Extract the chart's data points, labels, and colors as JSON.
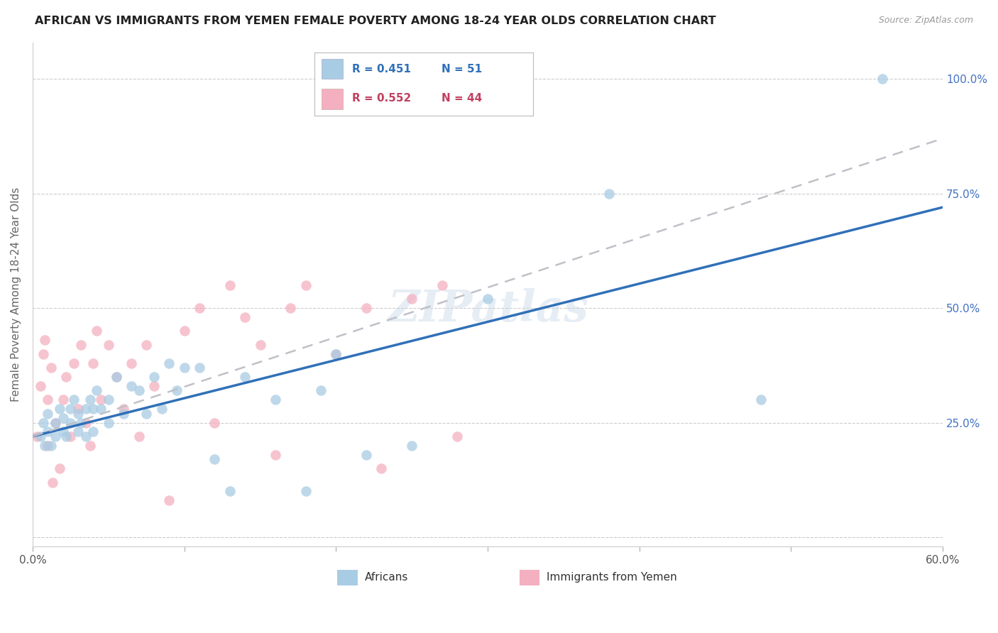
{
  "title": "AFRICAN VS IMMIGRANTS FROM YEMEN FEMALE POVERTY AMONG 18-24 YEAR OLDS CORRELATION CHART",
  "source": "Source: ZipAtlas.com",
  "ylabel": "Female Poverty Among 18-24 Year Olds",
  "xlim": [
    0.0,
    0.6
  ],
  "ylim": [
    -0.02,
    1.08
  ],
  "x_ticks": [
    0.0,
    0.1,
    0.2,
    0.3,
    0.4,
    0.5,
    0.6
  ],
  "x_tick_labels": [
    "0.0%",
    "",
    "",
    "",
    "",
    "",
    "60.0%"
  ],
  "y_ticks": [
    0.0,
    0.25,
    0.5,
    0.75,
    1.0
  ],
  "y_tick_labels": [
    "",
    "25.0%",
    "50.0%",
    "75.0%",
    "100.0%"
  ],
  "africans_R": 0.451,
  "africans_N": 51,
  "yemen_R": 0.552,
  "yemen_N": 44,
  "legend_label_1": "Africans",
  "legend_label_2": "Immigrants from Yemen",
  "color_blue": "#a8cce4",
  "color_pink": "#f4b0c0",
  "line_color_blue": "#3070b8",
  "line_color_pink": "#c0c0c8",
  "background_color": "#ffffff",
  "watermark": "ZIPatlas",
  "africans_x": [
    0.005,
    0.007,
    0.008,
    0.01,
    0.01,
    0.012,
    0.015,
    0.015,
    0.018,
    0.02,
    0.02,
    0.022,
    0.025,
    0.025,
    0.027,
    0.03,
    0.03,
    0.032,
    0.035,
    0.035,
    0.038,
    0.04,
    0.04,
    0.042,
    0.045,
    0.05,
    0.05,
    0.055,
    0.06,
    0.065,
    0.07,
    0.075,
    0.08,
    0.085,
    0.09,
    0.095,
    0.1,
    0.11,
    0.12,
    0.13,
    0.14,
    0.16,
    0.18,
    0.19,
    0.2,
    0.22,
    0.25,
    0.3,
    0.38,
    0.48,
    0.56
  ],
  "africans_y": [
    0.22,
    0.25,
    0.2,
    0.27,
    0.23,
    0.2,
    0.22,
    0.25,
    0.28,
    0.23,
    0.26,
    0.22,
    0.25,
    0.28,
    0.3,
    0.23,
    0.27,
    0.25,
    0.22,
    0.28,
    0.3,
    0.23,
    0.28,
    0.32,
    0.28,
    0.25,
    0.3,
    0.35,
    0.27,
    0.33,
    0.32,
    0.27,
    0.35,
    0.28,
    0.38,
    0.32,
    0.37,
    0.37,
    0.17,
    0.1,
    0.35,
    0.3,
    0.1,
    0.32,
    0.4,
    0.18,
    0.2,
    0.52,
    0.75,
    0.3,
    1.0
  ],
  "yemen_x": [
    0.003,
    0.005,
    0.007,
    0.008,
    0.01,
    0.01,
    0.012,
    0.013,
    0.015,
    0.018,
    0.02,
    0.022,
    0.025,
    0.027,
    0.03,
    0.032,
    0.035,
    0.038,
    0.04,
    0.042,
    0.045,
    0.05,
    0.055,
    0.06,
    0.065,
    0.07,
    0.075,
    0.08,
    0.09,
    0.1,
    0.11,
    0.12,
    0.13,
    0.14,
    0.15,
    0.16,
    0.17,
    0.18,
    0.2,
    0.22,
    0.23,
    0.25,
    0.27,
    0.28
  ],
  "yemen_y": [
    0.22,
    0.33,
    0.4,
    0.43,
    0.2,
    0.3,
    0.37,
    0.12,
    0.25,
    0.15,
    0.3,
    0.35,
    0.22,
    0.38,
    0.28,
    0.42,
    0.25,
    0.2,
    0.38,
    0.45,
    0.3,
    0.42,
    0.35,
    0.28,
    0.38,
    0.22,
    0.42,
    0.33,
    0.08,
    0.45,
    0.5,
    0.25,
    0.55,
    0.48,
    0.42,
    0.18,
    0.5,
    0.55,
    0.4,
    0.5,
    0.15,
    0.52,
    0.55,
    0.22
  ]
}
